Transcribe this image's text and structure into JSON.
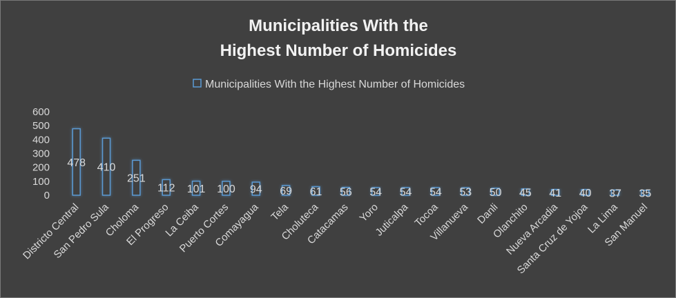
{
  "chart_data": {
    "type": "bar",
    "title": [
      "Municipalities With the",
      "Highest Number of Homicides"
    ],
    "legend": {
      "position": "top",
      "entries": [
        "Municipalities With the Highest Number of Homicides"
      ]
    },
    "categories": [
      "Districto Central",
      "San Pedro Sula",
      "Choloma",
      "El Progreso",
      "La Ceiba",
      "Puerto Cortes",
      "Comayagua",
      "Tela",
      "Choluteca",
      "Catacamas",
      "Yoro",
      "Juticalpa",
      "Tocoa",
      "Villanueva",
      "Danli",
      "Olanchito",
      "Nueva Arcadia",
      "Santa Cruz de Yojoa",
      "La Lima",
      "San Manuel"
    ],
    "series": [
      {
        "name": "Municipalities With the Highest Number of Homicides",
        "values": [
          478,
          410,
          251,
          112,
          101,
          100,
          94,
          69,
          61,
          56,
          54,
          54,
          54,
          53,
          50,
          45,
          41,
          40,
          37,
          35
        ]
      }
    ],
    "ylim": [
      0,
      600
    ],
    "yticks": [
      0,
      100,
      200,
      300,
      400,
      500,
      600
    ],
    "grid": false,
    "data_labels": true,
    "colors": {
      "background": "#404040",
      "bar_outline": "#5b9bd5",
      "text": "#d9d9d9",
      "title": "#f2f2f2"
    }
  }
}
